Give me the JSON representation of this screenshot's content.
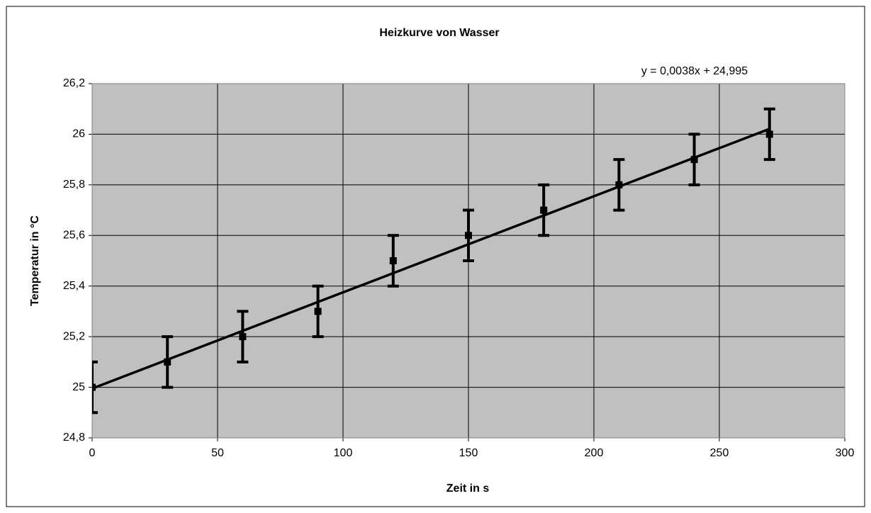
{
  "chart_data": {
    "type": "scatter",
    "title": "Heizkurve von Wasser",
    "xlabel": "Zeit in s",
    "ylabel": "Temperatur in °C",
    "x": [
      0,
      30,
      60,
      90,
      120,
      150,
      180,
      210,
      240,
      270
    ],
    "values": [
      25.0,
      25.1,
      25.2,
      25.3,
      25.5,
      25.6,
      25.7,
      25.8,
      25.9,
      26.0
    ],
    "errors": [
      0.1,
      0.1,
      0.1,
      0.1,
      0.1,
      0.1,
      0.1,
      0.1,
      0.1,
      0.1
    ],
    "color": "#000000",
    "background": "#c0c0c0",
    "trendline": {
      "slope": 0.0038,
      "intercept": 24.995,
      "label": "y = 0,0038x + 24,995"
    },
    "xlim": [
      0,
      300
    ],
    "xticks": [
      0,
      50,
      100,
      150,
      200,
      250,
      300
    ],
    "ylim": [
      24.8,
      26.2
    ],
    "yticks": [
      {
        "value": 24.8,
        "label": "24,8"
      },
      25,
      {
        "value": 25.2,
        "label": "25,2"
      },
      {
        "value": 25.4,
        "label": "25,4"
      },
      {
        "value": 25.6,
        "label": "25,6"
      },
      {
        "value": 25.8,
        "label": "25,8"
      },
      26,
      {
        "value": 26.2,
        "label": "26,2"
      }
    ],
    "grid": true
  }
}
